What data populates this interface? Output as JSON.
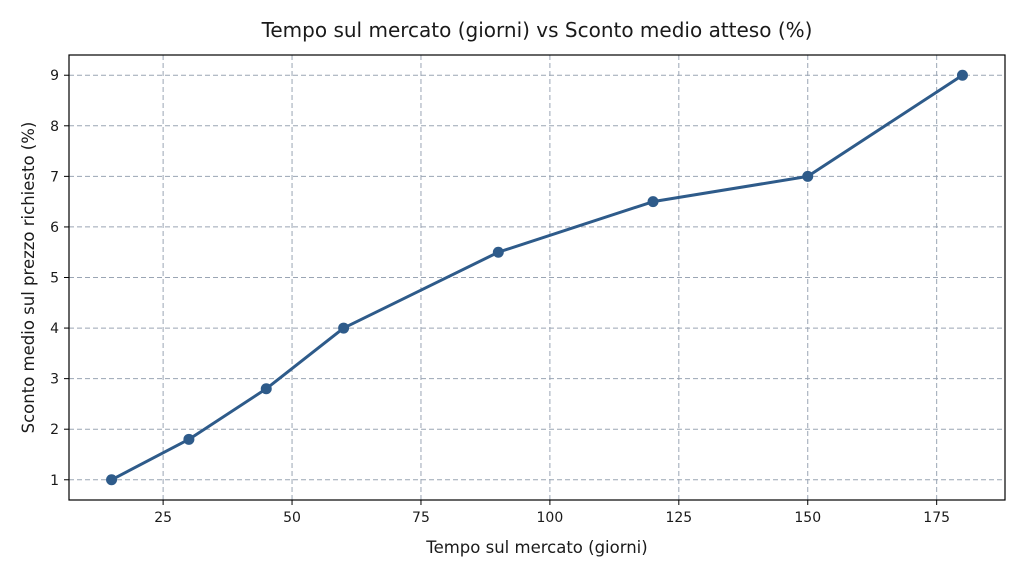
{
  "chart_data": {
    "type": "line",
    "title": "Tempo sul mercato (giorni) vs Sconto medio atteso (%)",
    "xlabel": "Tempo sul mercato (giorni)",
    "ylabel": "Sconto medio sul prezzo richiesto (%)",
    "x": [
      15,
      30,
      45,
      60,
      90,
      120,
      150,
      180
    ],
    "series": [
      {
        "values": [
          1.0,
          1.8,
          2.8,
          4.0,
          5.5,
          6.5,
          7.0,
          9.0
        ]
      }
    ],
    "xlim": [
      6.75,
      188.25
    ],
    "ylim": [
      0.6,
      9.4
    ],
    "xticks": [
      25,
      50,
      75,
      100,
      125,
      150,
      175
    ],
    "yticks": [
      1,
      2,
      3,
      4,
      5,
      6,
      7,
      8,
      9
    ],
    "grid": true,
    "line_color": "#2e5b8a",
    "grid_color": "#9aa5b4"
  }
}
